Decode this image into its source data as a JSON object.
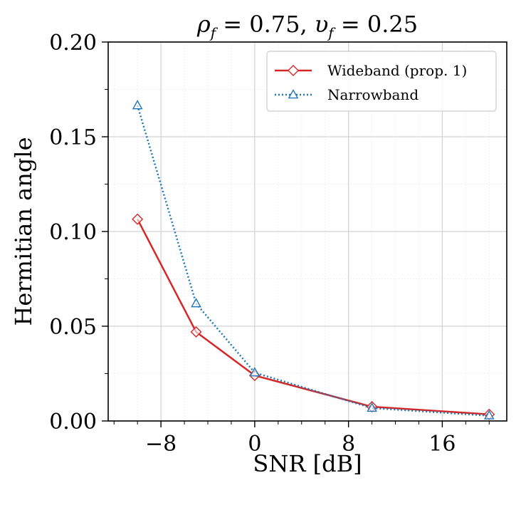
{
  "chart_data": {
    "type": "line",
    "title": "ρ_f = 0.75, υ_f = 0.25",
    "title_parts": {
      "rho": "ρ",
      "rho_sub": "f",
      "rho_val": " = 0.75, ",
      "upsilon": "υ",
      "upsilon_sub": "f",
      "upsilon_val": " = 0.25"
    },
    "xlabel": "SNR [dB]",
    "ylabel": "Hermitian angle",
    "xlim": [
      -12.5,
      21.5
    ],
    "ylim": [
      0,
      0.2
    ],
    "xticks": [
      -8,
      0,
      8,
      16
    ],
    "xtick_labels": [
      "−8",
      "0",
      "8",
      "16"
    ],
    "yticks": [
      0,
      0.05,
      0.1,
      0.15,
      0.2
    ],
    "ytick_labels": [
      "0.00",
      "0.05",
      "0.10",
      "0.15",
      "0.20"
    ],
    "grid": true,
    "legend_position": "top-right",
    "series": [
      {
        "name": "Wideband (prop. 1)",
        "color": "#d62728",
        "linestyle": "solid",
        "marker": "diamond",
        "x": [
          -10,
          -5,
          0,
          10,
          20
        ],
        "y": [
          0.1065,
          0.047,
          0.024,
          0.0075,
          0.0035
        ]
      },
      {
        "name": "Narrowband",
        "color": "#1f77b4",
        "linestyle": "dotted",
        "marker": "triangle",
        "x": [
          -10,
          -5,
          0,
          10,
          20
        ],
        "y": [
          0.1665,
          0.062,
          0.0255,
          0.0068,
          0.0028
        ]
      }
    ]
  }
}
